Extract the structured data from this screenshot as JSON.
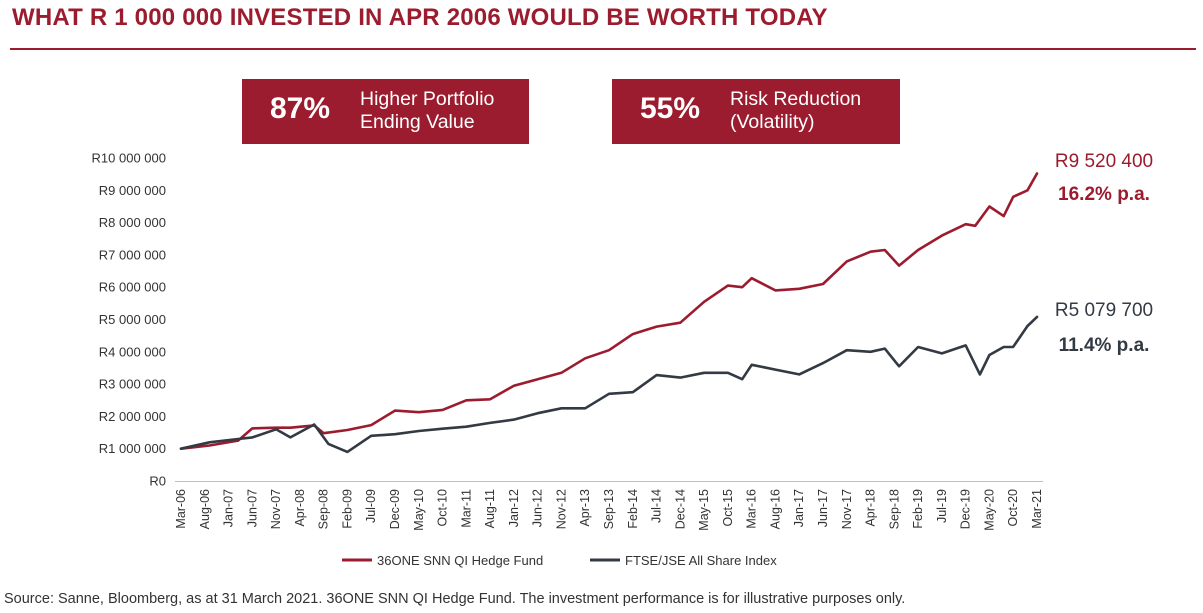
{
  "title": "WHAT R 1 000 000 INVESTED IN APR 2006 WOULD BE WORTH TODAY",
  "callouts": [
    {
      "pct": "87%",
      "text": "Higher Portfolio\nEnding Value"
    },
    {
      "pct": "55%",
      "text": "Risk Reduction\n(Volatility)"
    }
  ],
  "source": "Source: Sanne, Bloomberg, as at 31 March 2021. 36ONE SNN QI Hedge Fund. The investment performance is for illustrative purposes only.",
  "colors": {
    "fund": "#9b1c2e",
    "index": "#333a44",
    "accent": "#9b1c2e"
  },
  "chart_data": {
    "type": "line",
    "title": "WHAT R 1 000 000 INVESTED IN APR 2006 WOULD BE WORTH TODAY",
    "xlabel": "",
    "ylabel": "",
    "ylim": [
      0,
      10000000
    ],
    "yticks": [
      0,
      1000000,
      2000000,
      3000000,
      4000000,
      5000000,
      6000000,
      7000000,
      8000000,
      9000000,
      10000000
    ],
    "ytick_labels": [
      "R0",
      "R1 000 000",
      "R2 000 000",
      "R3 000 000",
      "R4 000 000",
      "R5 000 000",
      "R6 000 000",
      "R7 000 000",
      "R8 000 000",
      "R9 000 000",
      "R10 000 000"
    ],
    "x_start": "Mar-06",
    "x_end": "Mar-21",
    "x_tick_labels": [
      "Mar-06",
      "Aug-06",
      "Jan-07",
      "Jun-07",
      "Nov-07",
      "Apr-08",
      "Sep-08",
      "Feb-09",
      "Jul-09",
      "Dec-09",
      "May-10",
      "Oct-10",
      "Mar-11",
      "Aug-11",
      "Jan-12",
      "Jun-12",
      "Nov-12",
      "Apr-13",
      "Sep-13",
      "Feb-14",
      "Jul-14",
      "Dec-14",
      "May-15",
      "Oct-15",
      "Mar-16",
      "Aug-16",
      "Jan-17",
      "Jun-17",
      "Nov-17",
      "Apr-18",
      "Sep-18",
      "Feb-19",
      "Jul-19",
      "Dec-19",
      "May-20",
      "Oct-20",
      "Mar-21"
    ],
    "grid": false,
    "legend_position": "bottom-center",
    "series": [
      {
        "name": "36ONE SNN QI Hedge Fund",
        "color": "#9b1c2e",
        "end_label": "R9 520 400",
        "annual_return": "16.2% p.a.",
        "points": [
          [
            "Mar-06",
            1000000
          ],
          [
            "Sep-06",
            1100000
          ],
          [
            "Mar-07",
            1350000
          ],
          [
            "Jun-07",
            1580000
          ],
          [
            "Nov-07",
            1700000
          ],
          [
            "Feb-08",
            1550000
          ],
          [
            "Jul-08",
            1720000
          ],
          [
            "Sep-08",
            1580000
          ],
          [
            "Feb-09",
            1530000
          ],
          [
            "Jul-09",
            1780000
          ],
          [
            "Dec-09",
            2080000
          ],
          [
            "May-10",
            2130000
          ],
          [
            "Oct-10",
            2300000
          ],
          [
            "Mar-11",
            2450000
          ],
          [
            "Aug-11",
            2580000
          ],
          [
            "Jan-12",
            2850000
          ],
          [
            "Jun-12",
            3150000
          ],
          [
            "Nov-12",
            3450000
          ],
          [
            "Apr-13",
            3750000
          ],
          [
            "Sep-13",
            4100000
          ],
          [
            "Feb-14",
            4450000
          ],
          [
            "Jul-14",
            4780000
          ],
          [
            "Dec-14",
            5000000
          ],
          [
            "May-15",
            5500000
          ],
          [
            "Oct-15",
            6100000
          ],
          [
            "Jan-16",
            5900000
          ],
          [
            "Mar-16",
            6280000
          ],
          [
            "Aug-16",
            6000000
          ],
          [
            "Jan-17",
            5900000
          ],
          [
            "Jun-17",
            6150000
          ],
          [
            "Nov-17",
            6700000
          ],
          [
            "Apr-18",
            7100000
          ],
          [
            "Jul-18",
            7250000
          ],
          [
            "Oct-18",
            6620000
          ],
          [
            "Feb-19",
            7200000
          ],
          [
            "Jul-19",
            7500000
          ],
          [
            "Dec-19",
            7950000
          ],
          [
            "Feb-20",
            8000000
          ],
          [
            "May-20",
            8450000
          ],
          [
            "Aug-20",
            8250000
          ],
          [
            "Oct-20",
            8700000
          ],
          [
            "Jan-21",
            9000000
          ],
          [
            "Mar-21",
            9520400
          ]
        ]
      },
      {
        "name": "FTSE/JSE All Share Index",
        "color": "#333a44",
        "end_label": "R5 079 700",
        "annual_return": "11.4% p.a.",
        "points": [
          [
            "Mar-06",
            1000000
          ],
          [
            "Sep-06",
            1100000
          ],
          [
            "Mar-07",
            1300000
          ],
          [
            "Jun-07",
            1450000
          ],
          [
            "Nov-07",
            1550000
          ],
          [
            "Feb-08",
            1400000
          ],
          [
            "Jul-08",
            1650000
          ],
          [
            "Oct-08",
            1150000
          ],
          [
            "Feb-09",
            1000000
          ],
          [
            "Jul-09",
            1350000
          ],
          [
            "Dec-09",
            1500000
          ],
          [
            "May-10",
            1450000
          ],
          [
            "Oct-10",
            1620000
          ],
          [
            "Mar-11",
            1780000
          ],
          [
            "Aug-11",
            1750000
          ],
          [
            "Jan-12",
            1950000
          ],
          [
            "Jun-12",
            2000000
          ],
          [
            "Nov-12",
            2250000
          ],
          [
            "Apr-13",
            2350000
          ],
          [
            "Sep-13",
            2650000
          ],
          [
            "Feb-14",
            2800000
          ],
          [
            "Jul-14",
            3180000
          ],
          [
            "Dec-14",
            3200000
          ],
          [
            "May-15",
            3450000
          ],
          [
            "Oct-15",
            3300000
          ],
          [
            "Jan-16",
            3200000
          ],
          [
            "Mar-16",
            3500000
          ],
          [
            "Aug-16",
            3450000
          ],
          [
            "Jan-17",
            3400000
          ],
          [
            "Jun-17",
            3600000
          ],
          [
            "Nov-17",
            4100000
          ],
          [
            "Apr-18",
            3900000
          ],
          [
            "Jul-18",
            4100000
          ],
          [
            "Oct-18",
            3650000
          ],
          [
            "Feb-19",
            4100000
          ],
          [
            "Jul-19",
            4000000
          ],
          [
            "Dec-19",
            4100000
          ],
          [
            "Mar-20",
            3300000
          ],
          [
            "May-20",
            4000000
          ],
          [
            "Aug-20",
            4100000
          ],
          [
            "Oct-20",
            4200000
          ],
          [
            "Jan-21",
            4700000
          ],
          [
            "Mar-21",
            5079700
          ]
        ]
      }
    ]
  }
}
